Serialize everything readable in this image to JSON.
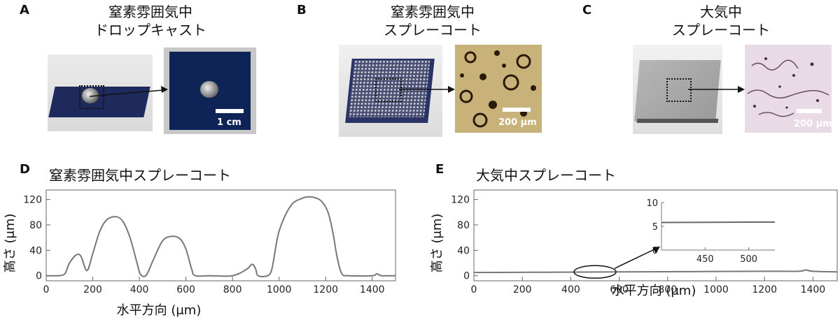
{
  "panels": {
    "A": {
      "letter": "A",
      "title_line1": "窒素雰囲気中",
      "title_line2": "ドロップキャスト",
      "scale_label": "1 cm"
    },
    "B": {
      "letter": "B",
      "title_line1": "窒素雰囲気中",
      "title_line2": "スプレーコート",
      "scale_label": "200 μm"
    },
    "C": {
      "letter": "C",
      "title_line1": "大気中",
      "title_line2": "スプレーコート",
      "scale_label": "200 μm"
    }
  },
  "chart_data": [
    {
      "panel": "D",
      "type": "line",
      "title": "窒素雰囲気中スプレーコート",
      "xlabel": "水平方向 (μm)",
      "ylabel": "高さ (μm)",
      "xlim": [
        0,
        1500
      ],
      "ylim": [
        -8,
        135
      ],
      "xticks": [
        0,
        200,
        400,
        600,
        800,
        1000,
        1200,
        1400
      ],
      "yticks": [
        0,
        40,
        80,
        120
      ],
      "x": [
        0,
        50,
        80,
        100,
        130,
        150,
        175,
        200,
        230,
        260,
        300,
        330,
        360,
        390,
        405,
        430,
        460,
        500,
        540,
        575,
        600,
        625,
        640,
        700,
        800,
        860,
        885,
        900,
        910,
        950,
        970,
        1000,
        1050,
        1100,
        1140,
        1180,
        1210,
        1230,
        1250,
        1270,
        1300,
        1400,
        1420,
        1440,
        1500
      ],
      "y": [
        0,
        0,
        3,
        20,
        33,
        30,
        8,
        35,
        70,
        88,
        93,
        85,
        60,
        20,
        2,
        1,
        25,
        55,
        62,
        58,
        42,
        10,
        0,
        0,
        0,
        10,
        18,
        10,
        0,
        0,
        12,
        70,
        110,
        122,
        124,
        118,
        100,
        70,
        28,
        3,
        0,
        0,
        3,
        0,
        0
      ]
    },
    {
      "panel": "E",
      "type": "line",
      "title": "大気中スプレーコート",
      "xlabel": "水平方向 (μm)",
      "ylabel": "高さ (μm)",
      "xlim": [
        0,
        1500
      ],
      "ylim": [
        -8,
        135
      ],
      "xticks": [
        0,
        200,
        400,
        600,
        800,
        1000,
        1200,
        1400
      ],
      "yticks": [
        0,
        40,
        80,
        120
      ],
      "x": [
        0,
        300,
        600,
        900,
        1200,
        1340,
        1370,
        1400,
        1500
      ],
      "y": [
        5,
        5.5,
        6,
        6.5,
        7,
        7,
        9,
        7,
        6
      ],
      "inset": {
        "type": "line",
        "xlim": [
          400,
          530
        ],
        "ylim": [
          0,
          10
        ],
        "xticks": [
          450,
          500
        ],
        "yticks": [
          0,
          5,
          10
        ],
        "x": [
          400,
          530
        ],
        "y": [
          5.8,
          5.9
        ]
      }
    }
  ]
}
